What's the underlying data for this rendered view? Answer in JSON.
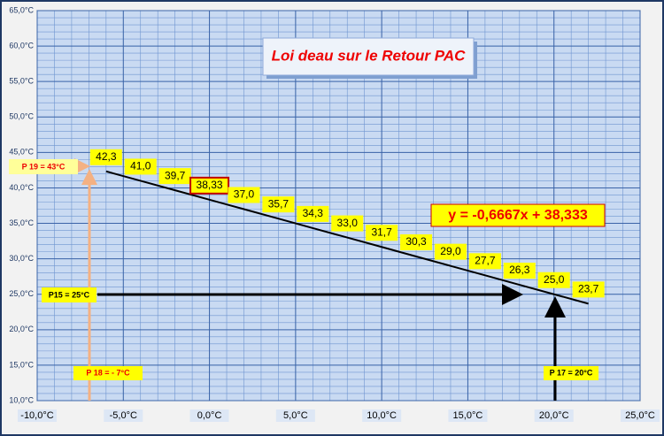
{
  "chart_data": {
    "type": "line",
    "title": "Loi deau sur le Retour PAC",
    "equation": "y = -0,6667x + 38,333",
    "annotations": [
      "P 19 = 43°C",
      "P15 = 25°C",
      "P 18 =  - 7°C",
      "P 17 = 20°C"
    ],
    "x": [
      -6,
      -4,
      -2,
      0,
      2,
      4,
      6,
      8,
      10,
      12,
      14,
      16,
      18,
      20,
      22
    ],
    "series": [
      {
        "color": "#000000",
        "values": [
          42.33,
          41.0,
          39.67,
          38.33,
          37.0,
          35.67,
          34.33,
          33.0,
          31.67,
          30.33,
          29.0,
          27.67,
          26.33,
          25.0,
          23.67
        ],
        "value_labels": [
          "42,3",
          "41,0",
          "39,7",
          "38,33",
          "37,0",
          "35,7",
          "34,3",
          "33,0",
          "31,7",
          "30,3",
          "29,0",
          "27,7",
          "26,3",
          "25,0",
          "23,7"
        ],
        "highlight_index": 3
      }
    ],
    "xlim": [
      -10,
      25
    ],
    "xticks": [
      {
        "value": -10,
        "label": "-10,0°C"
      },
      {
        "value": -5,
        "label": "-5,0°C"
      },
      {
        "value": 0,
        "label": "0,0°C"
      },
      {
        "value": 5,
        "label": "5,0°C"
      },
      {
        "value": 10,
        "label": "10,0°C"
      },
      {
        "value": 15,
        "label": "15,0°C"
      },
      {
        "value": 20,
        "label": "20,0°C"
      },
      {
        "value": 25,
        "label": "25,0°C"
      }
    ],
    "ylim": [
      10,
      65
    ],
    "yticks": [
      {
        "value": 10,
        "label": "10,0°C"
      },
      {
        "value": 15,
        "label": "15,0°C"
      },
      {
        "value": 20,
        "label": "20,0°C"
      },
      {
        "value": 25,
        "label": "25,0°C"
      },
      {
        "value": 30,
        "label": "30,0°C"
      },
      {
        "value": 35,
        "label": "35,0°C"
      },
      {
        "value": 40,
        "label": "40,0°C"
      },
      {
        "value": 45,
        "label": "45,0°C"
      },
      {
        "value": 50,
        "label": "50,0°C"
      },
      {
        "value": 55,
        "label": "55,0°C"
      },
      {
        "value": 60,
        "label": "60,0°C"
      },
      {
        "value": 65,
        "label": "65,0°C"
      }
    ],
    "grid": true,
    "minor_grid": true
  }
}
